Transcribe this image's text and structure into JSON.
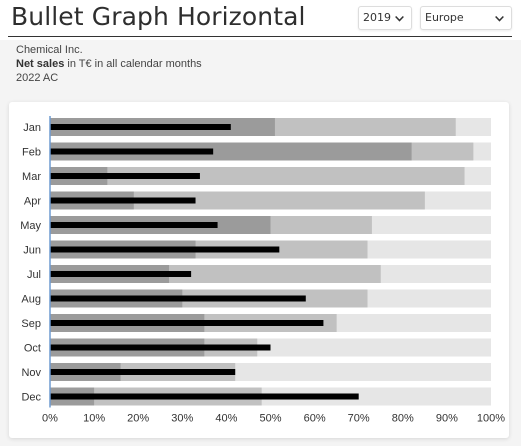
{
  "header": {
    "title": "Bullet Graph Horizontal",
    "year_select": {
      "value": "2019",
      "icon": "chevron-down-icon"
    },
    "region_select": {
      "value": "Europe",
      "icon": "chevron-down-icon"
    }
  },
  "subtitle": {
    "company": "Chemical Inc.",
    "measure_bold": "Net sales",
    "measure_rest": " in T€ in all calendar months",
    "scenario": "2022 AC"
  },
  "colors": {
    "band_light": "#e6e6e6",
    "band_mid": "#c1c1c1",
    "band_dark": "#9b9b9b",
    "actual_bar": "#000000",
    "axis_line": "#6f9bd1"
  },
  "chart_data": {
    "type": "bar",
    "orientation": "horizontal",
    "subtype": "bullet",
    "categories": [
      "Jan",
      "Feb",
      "Mar",
      "Apr",
      "May",
      "Jun",
      "Jul",
      "Aug",
      "Sep",
      "Oct",
      "Nov",
      "Dec"
    ],
    "series": [
      {
        "role": "actual",
        "values": [
          41,
          37,
          34,
          33,
          38,
          52,
          32,
          58,
          62,
          50,
          42,
          70
        ]
      },
      {
        "role": "band_dark",
        "values": [
          51,
          82,
          13,
          19,
          50,
          33,
          27,
          30,
          35,
          35,
          16,
          10
        ]
      },
      {
        "role": "band_mid",
        "values": [
          92,
          96,
          94,
          85,
          73,
          72,
          75,
          72,
          65,
          47,
          42,
          48
        ]
      },
      {
        "role": "band_light",
        "values": [
          100,
          100,
          100,
          100,
          100,
          100,
          100,
          100,
          100,
          100,
          100,
          100
        ]
      }
    ],
    "x_ticks": [
      "0%",
      "10%",
      "20%",
      "30%",
      "40%",
      "50%",
      "60%",
      "70%",
      "80%",
      "90%",
      "100%"
    ],
    "xlim": [
      0,
      100
    ],
    "grid": false,
    "legend": "none"
  }
}
